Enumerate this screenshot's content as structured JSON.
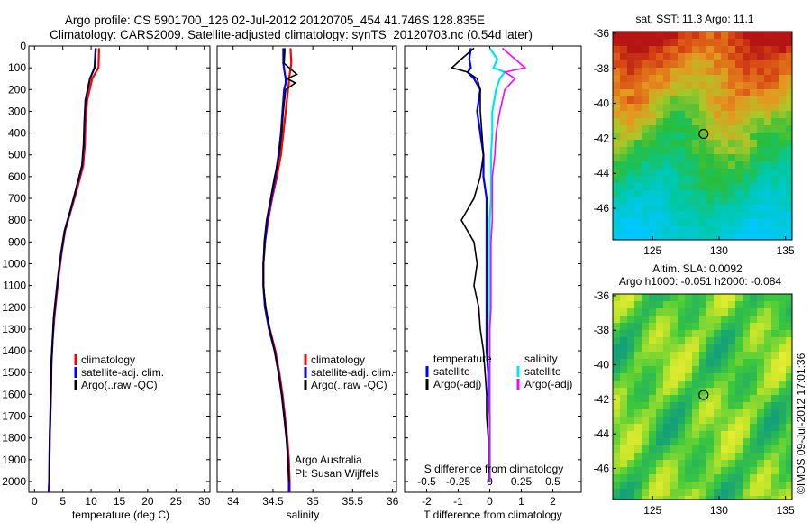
{
  "title": {
    "line1": "Argo profile: CS 5901700_126 02-Jul-2012 20120705_454 41.746S 128.835E",
    "line2": "Climatology: CARS2009. Satellite-adjusted climatology: synTS_20120703.nc (0.54d later)"
  },
  "colors": {
    "climatology": "#ff0000",
    "satellite": "#0000ff",
    "argo": "#000000",
    "sal_satellite": "#00e5ee",
    "sal_argo": "#ff00ff"
  },
  "chart_data": [
    {
      "type": "line",
      "name": "temperature-profile",
      "xlabel": "temperature (deg C)",
      "xlim": [
        -1,
        31
      ],
      "xticks": [
        "0",
        "5",
        "10",
        "15",
        "20",
        "25",
        "30"
      ],
      "ylim": [
        2050,
        0
      ],
      "yticks": [
        "0",
        "100",
        "200",
        "300",
        "400",
        "500",
        "600",
        "700",
        "800",
        "900",
        "1000",
        "1100",
        "1200",
        "1300",
        "1400",
        "1500",
        "1600",
        "1700",
        "1800",
        "1900",
        "2000"
      ],
      "depth": [
        10,
        100,
        150,
        250,
        350,
        450,
        550,
        650,
        750,
        850,
        950,
        1050,
        1150,
        1250,
        1350,
        1450,
        1600,
        1800,
        2000,
        2050
      ],
      "series": [
        {
          "name": "climatology",
          "values": [
            11.4,
            11.3,
            10.2,
            9.3,
            9.0,
            8.9,
            8.6,
            7.6,
            6.5,
            5.4,
            4.8,
            4.3,
            3.9,
            3.5,
            3.2,
            3.0,
            2.9,
            2.7,
            2.6,
            2.5
          ]
        },
        {
          "name": "satellite-adj. clim.",
          "values": [
            10.8,
            10.6,
            9.8,
            9.0,
            8.8,
            8.7,
            8.4,
            7.4,
            6.4,
            5.3,
            4.7,
            4.2,
            3.8,
            3.4,
            3.2,
            3.0,
            2.9,
            2.7,
            2.6,
            2.5
          ]
        },
        {
          "name": "Argo(..raw -QC)",
          "values": [
            10.9,
            10.6,
            9.8,
            9.0,
            8.8,
            8.7,
            8.4,
            7.4,
            6.4,
            5.3,
            4.7,
            4.2,
            3.8,
            3.4,
            3.2,
            3.0,
            2.9,
            2.7,
            2.6,
            null
          ]
        }
      ],
      "legend": [
        "climatology",
        "satellite-adj. clim.",
        "Argo(..raw -QC)"
      ]
    },
    {
      "type": "line",
      "name": "salinity-profile",
      "xlabel": "salinity",
      "xlim": [
        33.8,
        36.05
      ],
      "xticks": [
        "34",
        "34.5",
        "35",
        "35.5",
        "36"
      ],
      "ylim": [
        2050,
        0
      ],
      "depth": [
        10,
        80,
        130,
        150,
        170,
        200,
        300,
        400,
        500,
        600,
        700,
        800,
        900,
        1000,
        1100,
        1200,
        1300,
        1400,
        1500,
        1600,
        1700,
        1800,
        1900,
        2000,
        2050
      ],
      "series": [
        {
          "name": "climatology",
          "values": [
            34.72,
            34.73,
            34.71,
            34.7,
            34.7,
            34.69,
            34.66,
            34.63,
            34.6,
            34.55,
            34.49,
            34.44,
            34.4,
            34.38,
            34.38,
            34.4,
            34.46,
            34.53,
            34.58,
            34.62,
            34.65,
            34.68,
            34.7,
            34.71,
            34.71
          ]
        },
        {
          "name": "satellite-adj. clim.",
          "values": [
            34.63,
            34.63,
            34.65,
            34.66,
            34.66,
            34.64,
            34.62,
            34.6,
            34.57,
            34.53,
            34.48,
            34.43,
            34.4,
            34.38,
            34.38,
            34.4,
            34.45,
            34.52,
            34.57,
            34.61,
            34.64,
            34.67,
            34.69,
            34.7,
            34.7
          ]
        },
        {
          "name": "Argo(..raw -QC)",
          "values": [
            34.65,
            34.64,
            34.8,
            34.68,
            34.78,
            34.66,
            34.63,
            34.61,
            34.58,
            34.52,
            34.47,
            34.42,
            34.39,
            34.38,
            34.38,
            34.41,
            34.46,
            34.52,
            34.57,
            34.61,
            34.64,
            34.67,
            34.69,
            34.7,
            null
          ]
        }
      ],
      "legend": [
        "climatology",
        "satellite-adj. clim.",
        "Argo(..raw -QC)"
      ],
      "annotation": [
        "Argo Australia",
        "PI: Susan Wijffels"
      ]
    },
    {
      "type": "line",
      "name": "difference-profile",
      "xlabel": "T difference from climatology",
      "xlim": [
        -2.7,
        2.9
      ],
      "xticks": [
        "-2",
        "-1",
        "0",
        "1",
        "2"
      ],
      "top_xlabel": "S difference from climatology",
      "top_xticks": [
        "-0.5",
        "-0.25",
        "0",
        "0.25",
        "0.5"
      ],
      "ylim": [
        2050,
        0
      ],
      "depth": [
        10,
        60,
        100,
        120,
        150,
        200,
        300,
        400,
        500,
        600,
        700,
        800,
        900,
        1000,
        1100,
        1200,
        1300,
        1400,
        1500,
        1600,
        1700,
        1800,
        1900,
        2000
      ],
      "series": [
        {
          "name": "temperature satellite",
          "values": [
            -0.6,
            -0.65,
            -0.6,
            -0.7,
            -0.5,
            -0.3,
            -0.4,
            -0.3,
            -0.2,
            -0.2,
            -0.1,
            -0.1,
            -0.1,
            -0.1,
            -0.1,
            -0.1,
            -0.1,
            -0.1,
            -0.05,
            -0.05,
            0,
            0,
            0,
            0
          ]
        },
        {
          "name": "temperature Argo(-adj)",
          "values": [
            -0.5,
            -0.9,
            -1.2,
            -0.7,
            -0.4,
            -0.3,
            -0.3,
            -0.25,
            -0.2,
            -0.3,
            -0.5,
            -0.9,
            -0.5,
            -0.4,
            -0.5,
            -0.35,
            -0.3,
            -0.2,
            -0.15,
            -0.1,
            -0.1,
            -0.05,
            -0.05,
            -0.05
          ]
        },
        {
          "name": "salinity satellite",
          "values": [
            0,
            0.06,
            0.03,
            0.12,
            0.08,
            0.05,
            0.02,
            0.02,
            0.01,
            0.01,
            0.01,
            0,
            0,
            0,
            0,
            0,
            0,
            0,
            0,
            0,
            0,
            0,
            0,
            0
          ]
        },
        {
          "name": "salinity Argo(-adj)",
          "values": [
            0.1,
            0.2,
            0.28,
            0.12,
            0.2,
            0.12,
            0.08,
            0.05,
            0.04,
            0.02,
            0.02,
            0.02,
            0.01,
            0.01,
            0.01,
            0.01,
            0,
            0,
            0,
            0,
            0,
            0,
            0,
            0
          ]
        }
      ],
      "legend_headers": [
        "temperature",
        "salinity"
      ],
      "legend": [
        "satellite",
        "Argo(-adj)",
        "satellite",
        "Argo(-adj)"
      ]
    },
    {
      "type": "heatmap",
      "name": "sst-map",
      "title": "sat. SST: 11.3 Argo: 11.1",
      "xlim": [
        122,
        135.5
      ],
      "ylim": [
        -47.8,
        -35.9
      ],
      "xticks": [
        "125",
        "130",
        "135"
      ],
      "yticks": [
        "-36",
        "-38",
        "-40",
        "-42",
        "-44",
        "-46"
      ],
      "marker": {
        "lon": 128.835,
        "lat": -41.746
      }
    },
    {
      "type": "heatmap",
      "name": "sla-map",
      "title1": "Altim. SLA: 0.0092",
      "title2": "Argo h1000: -0.051 h2000: -0.084",
      "xlim": [
        122,
        135.5
      ],
      "ylim": [
        -47.8,
        -35.9
      ],
      "xticks": [
        "125",
        "130",
        "135"
      ],
      "yticks": [
        "-36",
        "-38",
        "-40",
        "-42",
        "-44",
        "-46"
      ],
      "marker": {
        "lon": 128.835,
        "lat": -41.746
      }
    }
  ],
  "stamp": "©IMOS 09-Jul-2012 17:01:36"
}
